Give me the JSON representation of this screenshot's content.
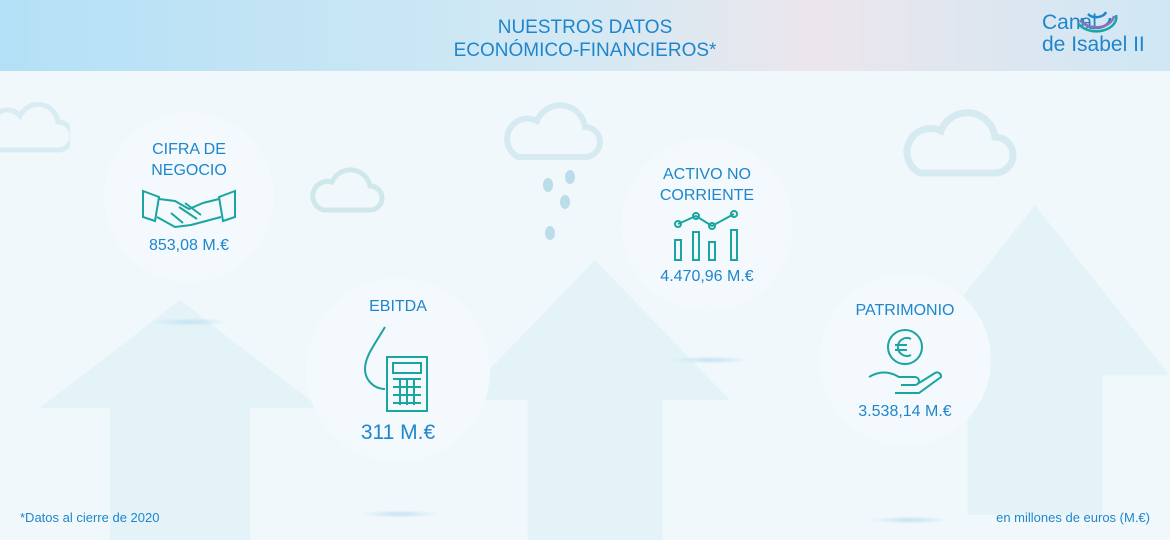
{
  "header": {
    "title_line1": "NUESTROS DATOS",
    "title_line2": "ECONÓMICO-FINANCIEROS*",
    "logo_text1": "Canal",
    "logo_text2": "de Isabel II"
  },
  "metrics": [
    {
      "label": "CIFRA DE NEGOCIO",
      "icon": "handshake-icon",
      "value": "853,08 M.€"
    },
    {
      "label": "EBITDA",
      "icon": "drop-calculator-icon",
      "value": "311 M.€"
    },
    {
      "label": "ACTIVO NO CORRIENTE",
      "icon": "line-bar-chart-icon",
      "value": "4.470,96 M.€"
    },
    {
      "label": "PATRIMONIO",
      "icon": "euro-hand-icon",
      "value": "3.538,14 M.€"
    }
  ],
  "footer": {
    "note": "*Datos al cierre de 2020",
    "units": "en millones de euros (M.€)"
  },
  "colors": {
    "accent": "#1f86cc",
    "icon": "#1aa5a0",
    "ring_blue": "#2589cc",
    "ring_lavender": "#abc3e1",
    "ring_teal": "#3f8c95",
    "ring_purple": "#8e86ae"
  }
}
